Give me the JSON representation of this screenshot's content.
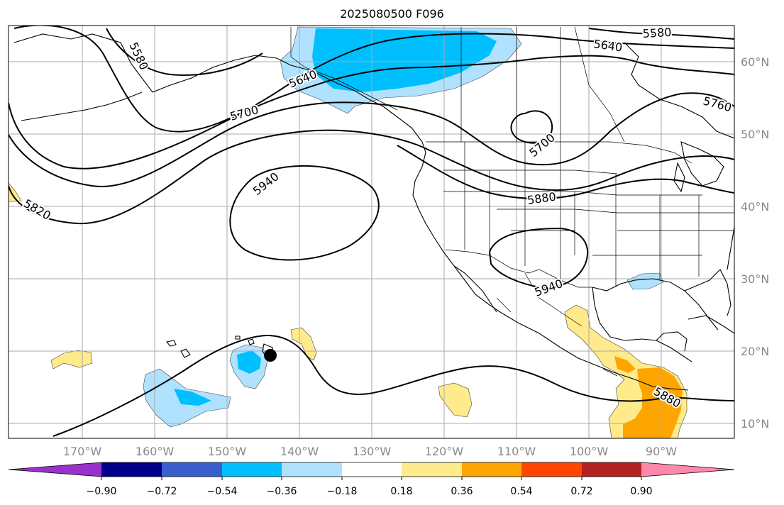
{
  "title": "2025080500 F096",
  "lon_labels": [
    "170°W",
    "160°W",
    "150°W",
    "140°W",
    "130°W",
    "120°W",
    "110°W",
    "100°W",
    "90°W"
  ],
  "lat_labels": [
    "60°N",
    "50°N",
    "40°N",
    "30°N",
    "20°N",
    "10°N"
  ],
  "contour_labels": [
    "5580",
    "5640",
    "5580",
    "5640",
    "5700",
    "5760",
    "5700",
    "5940",
    "5880",
    "5820",
    "5940",
    "5880"
  ],
  "colorbar": {
    "colors": [
      "#9932cc",
      "#00008b",
      "#3a5fcd",
      "#00bfff",
      "#b0e2ff",
      "#ffffff",
      "#ffeb8c",
      "#ffa500",
      "#ff4500",
      "#b22222",
      "#ff88aa"
    ],
    "tick_labels": [
      "−0.90",
      "−0.72",
      "−0.54",
      "−0.36",
      "−0.18",
      "0.18",
      "0.36",
      "0.54",
      "0.72",
      "0.90"
    ]
  },
  "marker": {
    "name": "storm-position",
    "lon": -144,
    "lat": 19.5
  }
}
